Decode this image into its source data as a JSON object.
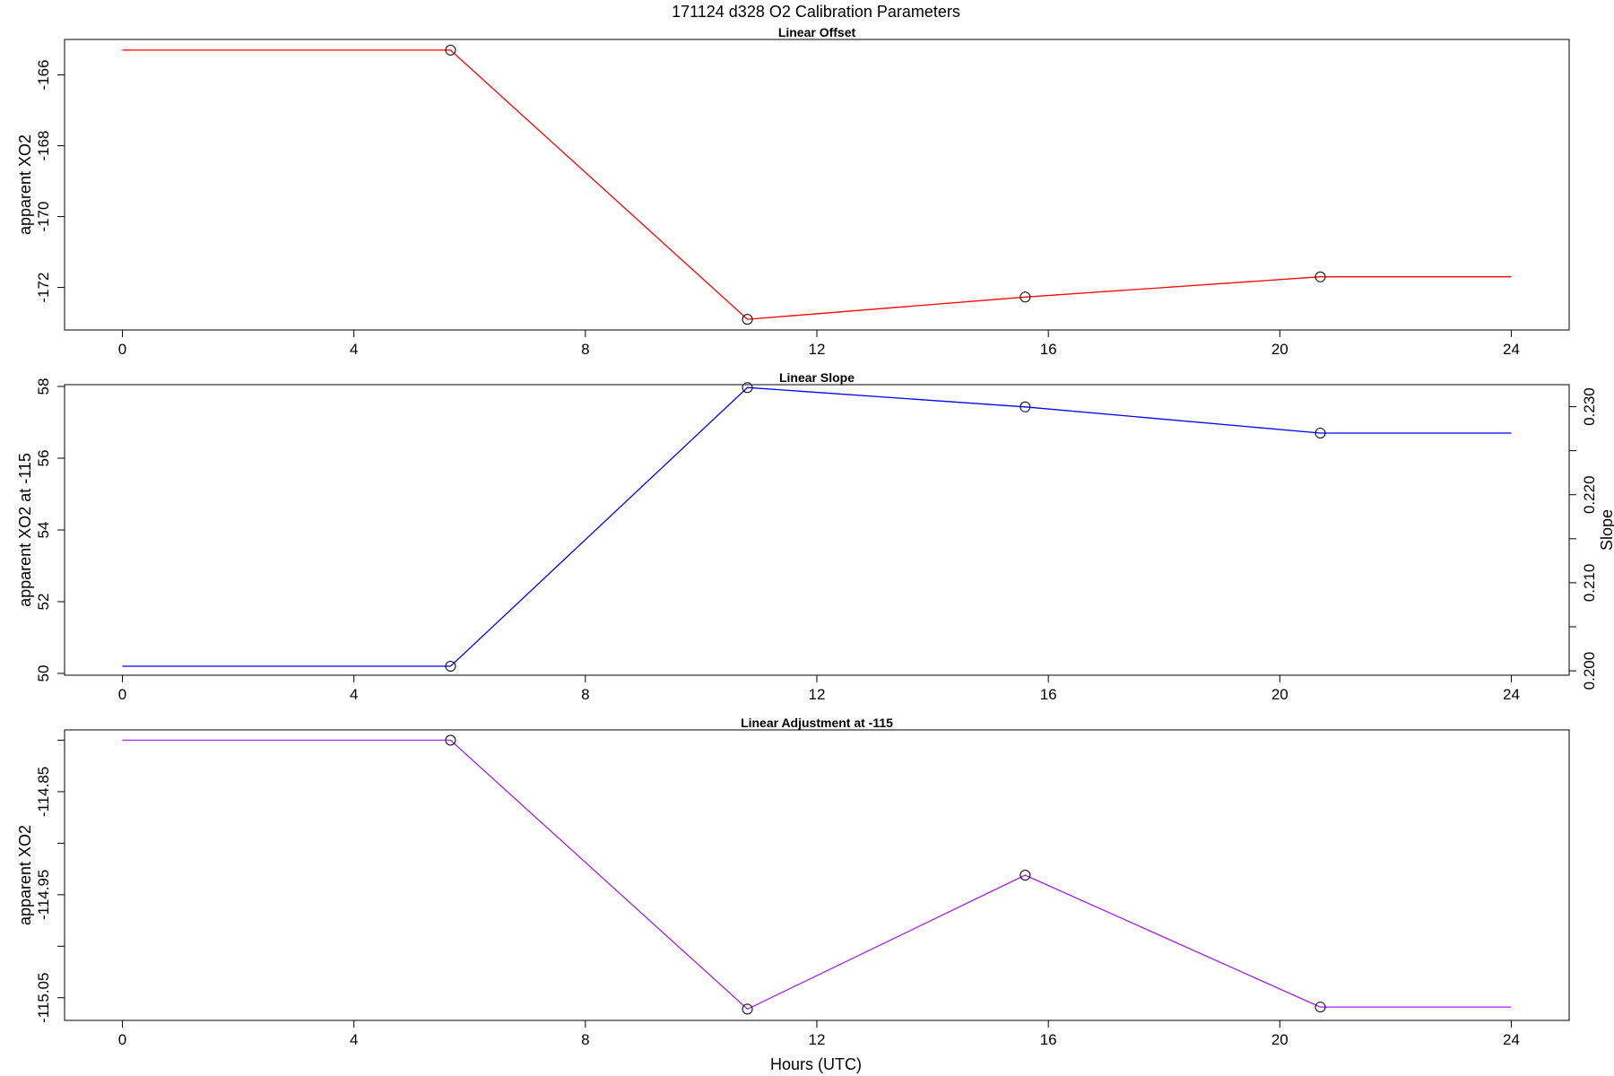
{
  "figure": {
    "title": "171124   d328   O2 Calibration Parameters",
    "xlabel": "Hours (UTC)"
  },
  "chart_data": [
    {
      "type": "line",
      "title": "Linear Offset",
      "xlabel": "",
      "ylabel": "apparent XO2",
      "xlim": [
        -1.0,
        25.0
      ],
      "ylim": [
        -173.2,
        -165.0
      ],
      "xticks": [
        "0",
        "4",
        "8",
        "12",
        "16",
        "20",
        "24"
      ],
      "xtick_values": [
        0,
        4,
        8,
        12,
        16,
        20,
        24
      ],
      "yticks": [
        "-166",
        "-168",
        "-170",
        "-172"
      ],
      "ytick_values": [
        -166,
        -168,
        -170,
        -172
      ],
      "grid": false,
      "color": "#ff0000",
      "series": [
        {
          "x": [
            0,
            5.67,
            10.8,
            15.6,
            20.7,
            24
          ],
          "y": [
            -165.3,
            -165.3,
            -172.9,
            -172.27,
            -171.7,
            -171.7
          ]
        }
      ],
      "markers": {
        "x": [
          5.67,
          10.8,
          15.6,
          20.7
        ],
        "y": [
          -165.3,
          -172.9,
          -172.27,
          -171.7
        ]
      }
    },
    {
      "type": "line",
      "title": "Linear Slope",
      "xlabel": "",
      "ylabel": "apparent XO2 at -115",
      "ylabel_right": "Slope",
      "xlim": [
        -1.0,
        25.0
      ],
      "ylim": [
        49.95,
        58.05
      ],
      "xticks": [
        "0",
        "4",
        "8",
        "12",
        "16",
        "20",
        "24"
      ],
      "xtick_values": [
        0,
        4,
        8,
        12,
        16,
        20,
        24
      ],
      "yticks": [
        "50",
        "52",
        "54",
        "56",
        "58"
      ],
      "ytick_values": [
        50,
        52,
        54,
        56,
        58
      ],
      "y2ticks": [
        "0.200",
        "0.210",
        "0.220",
        "0.230"
      ],
      "y2tick_values": [
        0.2,
        0.205,
        0.21,
        0.215,
        0.22,
        0.225,
        0.23
      ],
      "y2tick_labeled": [
        0.2,
        0.21,
        0.22,
        0.23
      ],
      "y2lim": [
        0.1995,
        0.2325
      ],
      "grid": false,
      "color": "#0000ff",
      "series": [
        {
          "x": [
            0,
            5.67,
            10.8,
            15.6,
            20.7,
            24
          ],
          "y": [
            50.2,
            50.2,
            57.97,
            57.43,
            56.7,
            56.7
          ]
        }
      ],
      "markers": {
        "x": [
          5.67,
          10.8,
          15.6,
          20.7
        ],
        "y": [
          50.2,
          57.97,
          57.43,
          56.7
        ]
      }
    },
    {
      "type": "line",
      "title": "Linear Adjustment at -115",
      "xlabel": "",
      "ylabel": "apparent XO2",
      "xlim": [
        -1.0,
        25.0
      ],
      "ylim": [
        -115.072,
        -114.79
      ],
      "xticks": [
        "0",
        "4",
        "8",
        "12",
        "16",
        "20",
        "24"
      ],
      "xtick_values": [
        0,
        4,
        8,
        12,
        16,
        20,
        24
      ],
      "yticks": [
        "-114.85",
        "-114.95",
        "-115.05"
      ],
      "ytick_values": [
        -114.85,
        -114.95,
        -115.05
      ],
      "yminor_ticks": [
        -114.8,
        -114.9,
        -115.0
      ],
      "grid": false,
      "color": "#a020f0",
      "series": [
        {
          "x": [
            0,
            5.67,
            10.8,
            15.6,
            20.7,
            24
          ],
          "y": [
            -114.8,
            -114.8,
            -115.061,
            -114.931,
            -115.059,
            -115.059
          ]
        }
      ],
      "markers": {
        "x": [
          5.67,
          10.8,
          15.6,
          20.7
        ],
        "y": [
          -114.8,
          -115.061,
          -114.931,
          -115.059
        ]
      }
    }
  ]
}
